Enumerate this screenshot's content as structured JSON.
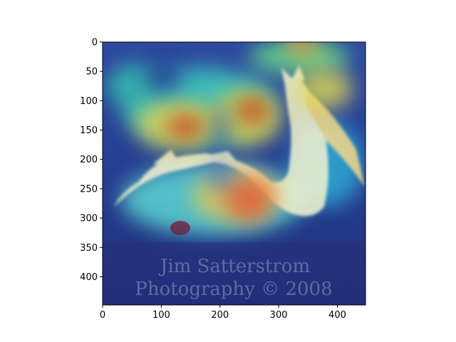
{
  "chart_data": {
    "type": "heatmap",
    "title": "",
    "xlabel": "",
    "ylabel": "",
    "xlim": [
      0,
      448
    ],
    "ylim": [
      448,
      0
    ],
    "x_ticks": [
      0,
      100,
      200,
      300,
      400
    ],
    "y_ticks": [
      0,
      50,
      100,
      150,
      200,
      250,
      300,
      350,
      400
    ],
    "x_tick_labels": [
      "0",
      "100",
      "200",
      "300",
      "400"
    ],
    "y_tick_labels": [
      "0",
      "50",
      "100",
      "150",
      "200",
      "250",
      "300",
      "350",
      "400"
    ],
    "grid": false,
    "legend": "none",
    "colormap": "jet",
    "overlay": "attention heatmap over photo of a pelican swimming",
    "hotspots": [
      {
        "x": 140,
        "y": 145,
        "value": 0.95
      },
      {
        "x": 260,
        "y": 125,
        "value": 0.95
      },
      {
        "x": 250,
        "y": 275,
        "value": 0.85
      },
      {
        "x": 340,
        "y": 10,
        "value": 0.8
      },
      {
        "x": 120,
        "y": 255,
        "value": 0.5
      },
      {
        "x": 380,
        "y": 150,
        "value": 0.55
      },
      {
        "x": 60,
        "y": 110,
        "value": 0.45
      }
    ],
    "watermark_lines": [
      "Jim Satterstrom",
      "Photography © 2008"
    ]
  },
  "colors": {
    "water": "#2f4f9a",
    "bird": "#f2f2d8",
    "axis": "#000000"
  }
}
